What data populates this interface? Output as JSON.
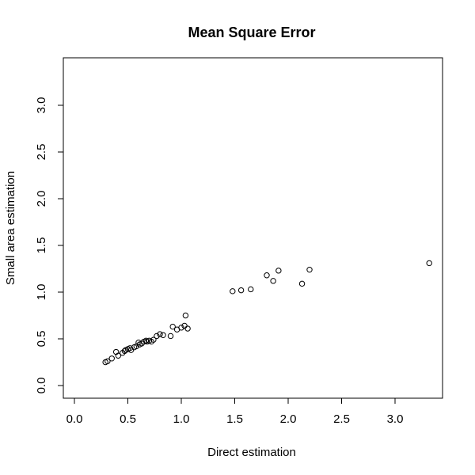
{
  "chart_data": {
    "type": "scatter",
    "title": "Mean Square Error",
    "xlabel": "Direct estimation",
    "ylabel": "Small area estimation",
    "xlim": [
      0.0,
      3.4
    ],
    "ylim": [
      0.0,
      3.3
    ],
    "xticks": [
      "0.0",
      "0.5",
      "1.0",
      "1.5",
      "2.0",
      "2.5",
      "3.0"
    ],
    "yticks": [
      "0.0",
      "0.5",
      "1.0",
      "1.5",
      "2.0",
      "2.5",
      "3.0"
    ],
    "grid": false,
    "legend": "none",
    "marker": "open-circle",
    "marker_color": "#000000",
    "series": [
      {
        "points": [
          {
            "x": 0.29,
            "y": 0.25
          },
          {
            "x": 0.31,
            "y": 0.26
          },
          {
            "x": 0.35,
            "y": 0.29
          },
          {
            "x": 0.39,
            "y": 0.36
          },
          {
            "x": 0.41,
            "y": 0.32
          },
          {
            "x": 0.45,
            "y": 0.35
          },
          {
            "x": 0.47,
            "y": 0.37
          },
          {
            "x": 0.48,
            "y": 0.38
          },
          {
            "x": 0.5,
            "y": 0.39
          },
          {
            "x": 0.52,
            "y": 0.4
          },
          {
            "x": 0.53,
            "y": 0.38
          },
          {
            "x": 0.56,
            "y": 0.41
          },
          {
            "x": 0.58,
            "y": 0.42
          },
          {
            "x": 0.6,
            "y": 0.46
          },
          {
            "x": 0.61,
            "y": 0.44
          },
          {
            "x": 0.63,
            "y": 0.45
          },
          {
            "x": 0.65,
            "y": 0.47
          },
          {
            "x": 0.67,
            "y": 0.48
          },
          {
            "x": 0.68,
            "y": 0.47
          },
          {
            "x": 0.7,
            "y": 0.48
          },
          {
            "x": 0.72,
            "y": 0.47
          },
          {
            "x": 0.74,
            "y": 0.49
          },
          {
            "x": 0.77,
            "y": 0.53
          },
          {
            "x": 0.8,
            "y": 0.55
          },
          {
            "x": 0.83,
            "y": 0.54
          },
          {
            "x": 0.9,
            "y": 0.53
          },
          {
            "x": 0.92,
            "y": 0.63
          },
          {
            "x": 0.96,
            "y": 0.6
          },
          {
            "x": 1.0,
            "y": 0.62
          },
          {
            "x": 1.03,
            "y": 0.64
          },
          {
            "x": 1.04,
            "y": 0.75
          },
          {
            "x": 1.06,
            "y": 0.61
          },
          {
            "x": 1.48,
            "y": 1.01
          },
          {
            "x": 1.56,
            "y": 1.02
          },
          {
            "x": 1.65,
            "y": 1.03
          },
          {
            "x": 1.8,
            "y": 1.18
          },
          {
            "x": 1.86,
            "y": 1.12
          },
          {
            "x": 1.91,
            "y": 1.23
          },
          {
            "x": 2.13,
            "y": 1.09
          },
          {
            "x": 2.2,
            "y": 1.24
          },
          {
            "x": 3.32,
            "y": 1.31
          }
        ]
      }
    ]
  }
}
